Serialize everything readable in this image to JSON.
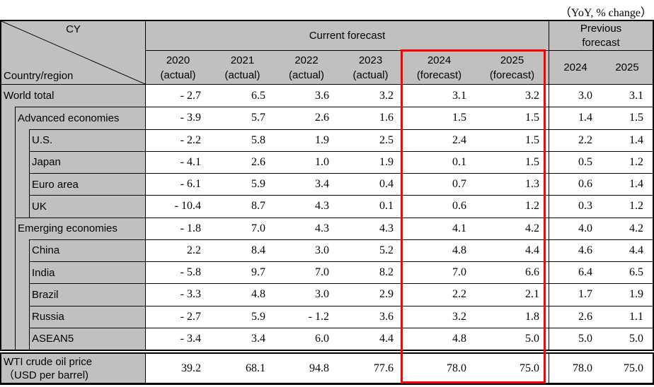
{
  "note": "（YoY, % change）",
  "corner": {
    "top_right": "CY",
    "bottom_left": "Country/region"
  },
  "header": {
    "current": "Current forecast",
    "previous": "Previous\nforecast",
    "columns": [
      {
        "year": "2020",
        "sub": "(actual)"
      },
      {
        "year": "2021",
        "sub": "(actual)"
      },
      {
        "year": "2022",
        "sub": "(actual)"
      },
      {
        "year": "2023",
        "sub": "(actual)"
      },
      {
        "year": "2024",
        "sub": "(forecast)"
      },
      {
        "year": "2025",
        "sub": "(forecast)"
      },
      {
        "year": "2024",
        "sub": ""
      },
      {
        "year": "2025",
        "sub": ""
      }
    ]
  },
  "rows": [
    {
      "label": "World total",
      "indent": 0,
      "values": [
        "- 2.7",
        "6.5",
        "3.6",
        "3.2",
        "3.1",
        "3.2",
        "3.0",
        "3.1"
      ]
    },
    {
      "label": "Advanced economies",
      "indent": 1,
      "values": [
        "- 3.9",
        "5.7",
        "2.6",
        "1.6",
        "1.5",
        "1.5",
        "1.4",
        "1.5"
      ]
    },
    {
      "label": "U.S.",
      "indent": 2,
      "values": [
        "- 2.2",
        "5.8",
        "1.9",
        "2.5",
        "2.4",
        "1.5",
        "2.2",
        "1.4"
      ]
    },
    {
      "label": "Japan",
      "indent": 2,
      "values": [
        "- 4.1",
        "2.6",
        "1.0",
        "1.9",
        "0.1",
        "1.5",
        "0.5",
        "1.2"
      ]
    },
    {
      "label": "Euro area",
      "indent": 2,
      "values": [
        "- 6.1",
        "5.9",
        "3.4",
        "0.4",
        "0.7",
        "1.3",
        "0.6",
        "1.4"
      ]
    },
    {
      "label": "UK",
      "indent": 2,
      "values": [
        "- 10.4",
        "8.7",
        "4.3",
        "0.1",
        "0.6",
        "1.2",
        "0.3",
        "1.2"
      ]
    },
    {
      "label": "Emerging economies",
      "indent": 1,
      "values": [
        "- 1.8",
        "7.0",
        "4.3",
        "4.3",
        "4.1",
        "4.2",
        "4.0",
        "4.2"
      ]
    },
    {
      "label": "China",
      "indent": 2,
      "values": [
        "2.2",
        "8.4",
        "3.0",
        "5.2",
        "4.8",
        "4.4",
        "4.6",
        "4.4"
      ]
    },
    {
      "label": "India",
      "indent": 2,
      "values": [
        "- 5.8",
        "9.7",
        "7.0",
        "8.2",
        "7.0",
        "6.6",
        "6.4",
        "6.5"
      ]
    },
    {
      "label": "Brazil",
      "indent": 2,
      "values": [
        "- 3.3",
        "4.8",
        "3.0",
        "2.9",
        "2.2",
        "2.1",
        "1.7",
        "1.9"
      ]
    },
    {
      "label": "Russia",
      "indent": 2,
      "values": [
        "- 2.7",
        "5.9",
        "- 1.2",
        "3.6",
        "3.2",
        "1.8",
        "2.6",
        "1.1"
      ]
    },
    {
      "label": "ASEAN5",
      "indent": 2,
      "values": [
        "- 3.4",
        "3.4",
        "6.0",
        "4.4",
        "4.8",
        "5.0",
        "5.0",
        "5.0"
      ]
    }
  ],
  "wti": {
    "label_line1": "WTI crude oil price",
    "label_line2": "（USD per barrel)",
    "values": [
      "39.2",
      "68.1",
      "94.8",
      "77.6",
      "78.0",
      "75.0",
      "78.0",
      "75.0"
    ]
  },
  "colors": {
    "highlight": "#ff0000",
    "cell_gray": "#c0c0c0"
  }
}
